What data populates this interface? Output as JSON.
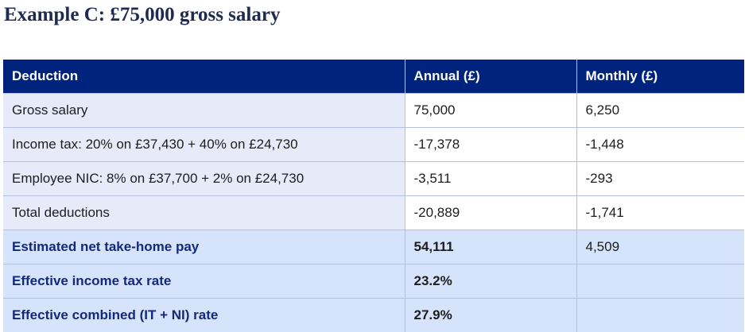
{
  "title": "Example C: £75,000 gross salary",
  "table": {
    "headers": {
      "deduction": "Deduction",
      "annual": "Annual (£)",
      "monthly": "Monthly (£)"
    },
    "rows": [
      {
        "label": "Gross salary",
        "annual": "75,000",
        "monthly": "6,250"
      },
      {
        "label": "Income tax: 20% on £37,430 + 40% on £24,730",
        "annual": "-17,378",
        "monthly": "-1,448"
      },
      {
        "label": "Employee NIC: 8% on £37,700 + 2% on £24,730",
        "annual": "-3,511",
        "monthly": "-293"
      },
      {
        "label": "Total deductions",
        "annual": "-20,889",
        "monthly": "-1,741"
      },
      {
        "label": "Estimated net take-home pay",
        "annual": "54,111",
        "monthly": "4,509"
      },
      {
        "label": "Effective income tax rate",
        "annual": "23.2%",
        "monthly": ""
      },
      {
        "label": "Effective combined (IT + NI) rate",
        "annual": "27.9%",
        "monthly": ""
      }
    ]
  }
}
